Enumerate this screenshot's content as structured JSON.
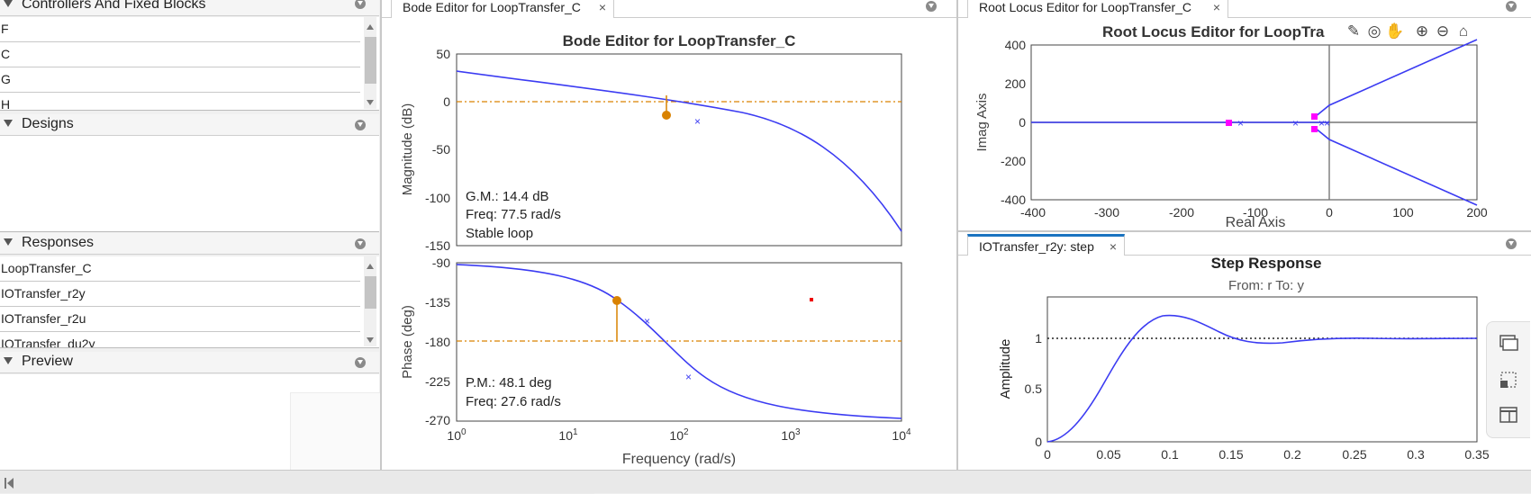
{
  "left_panel": {
    "controllers": {
      "title": "Controllers And Fixed Blocks",
      "items": [
        "F",
        "C",
        "G",
        "H"
      ]
    },
    "designs": {
      "title": "Designs"
    },
    "responses": {
      "title": "Responses",
      "items": [
        "LoopTransfer_C",
        "IOTransfer_r2y",
        "IOTransfer_r2u",
        "IOTransfer_du2y"
      ]
    },
    "preview": {
      "title": "Preview"
    }
  },
  "tabs": {
    "bode": "Bode Editor for LoopTransfer_C",
    "rlocus": "Root Locus Editor for LoopTransfer_C",
    "step": "IOTransfer_r2y: step",
    "close_glyph": "×"
  },
  "bode": {
    "title": "Bode Editor for LoopTransfer_C",
    "mag_ylabel": "Magnitude (dB)",
    "phase_ylabel": "Phase (deg)",
    "xlabel": "Frequency (rad/s)",
    "mag_ticks": [
      "50",
      "0",
      "-50",
      "-100",
      "-150"
    ],
    "phase_ticks": [
      "-90",
      "-135",
      "-180",
      "-225",
      "-270"
    ],
    "gm_text": [
      "G.M.: 14.4 dB",
      "Freq: 77.5 rad/s",
      "Stable loop"
    ],
    "pm_text": [
      "P.M.: 48.1 deg",
      "Freq: 27.6 rad/s"
    ]
  },
  "rlocus": {
    "title": "Root Locus Editor for LoopTra",
    "xlabel": "Real Axis",
    "ylabel": "Imag Axis",
    "xticks": [
      "-400",
      "-300",
      "-200",
      "-100",
      "0",
      "100",
      "200"
    ],
    "yticks": [
      "400",
      "200",
      "0",
      "-200",
      "-400"
    ],
    "tool_icons": [
      "edit-icon",
      "target-icon",
      "pan-hand-icon",
      "zoom-in-icon",
      "zoom-out-icon",
      "home-icon"
    ]
  },
  "step": {
    "title": "Step Response",
    "subtitle": "From: r  To: y",
    "ylabel": "Amplitude",
    "xticks": [
      "0",
      "0.05",
      "0.1",
      "0.15",
      "0.2",
      "0.25",
      "0.3",
      "0.35"
    ],
    "yticks": [
      "1",
      "0.5",
      "0"
    ]
  },
  "colors": {
    "line": "#3b3bf2",
    "accent": "#d98200",
    "marker": "#ff00ff",
    "tab_active": "#1a73c0"
  },
  "chart_data": [
    {
      "type": "line",
      "title": "Bode Editor for LoopTransfer_C",
      "xlabel": "Frequency (rad/s)",
      "ylabel": "Magnitude (dB)",
      "xscale": "log",
      "xlim": [
        1,
        10000
      ],
      "ylim": [
        -150,
        50
      ],
      "series": [
        {
          "x": [
            1,
            3,
            10,
            20,
            30,
            50,
            77.5,
            100,
            200,
            500,
            1000,
            3000,
            10000
          ],
          "values": [
            30.5,
            26,
            16.5,
            9,
            4,
            -4,
            -14.4,
            -20,
            -34,
            -57,
            -75,
            -103,
            -134
          ]
        }
      ],
      "annotations": {
        "gain_margin_db": 14.4,
        "gm_freq": 77.5
      }
    },
    {
      "type": "line",
      "xlabel": "Frequency (rad/s)",
      "ylabel": "Phase (deg)",
      "xscale": "log",
      "xlim": [
        1,
        10000
      ],
      "ylim": [
        -270,
        -90
      ],
      "series": [
        {
          "x": [
            1,
            3,
            10,
            20,
            27.6,
            50,
            77.5,
            150,
            300,
            1000,
            3000,
            10000
          ],
          "values": [
            -91,
            -94,
            -104,
            -121,
            -131.9,
            -153,
            -180,
            -207,
            -235,
            -258,
            -266,
            -269
          ]
        }
      ],
      "annotations": {
        "phase_margin_deg": 48.1,
        "pm_freq": 27.6
      }
    },
    {
      "type": "line",
      "title": "Root Locus Editor for LoopTransfer_C",
      "xlabel": "Real Axis",
      "ylabel": "Imag Axis",
      "xlim": [
        -400,
        200
      ],
      "ylim": [
        -400,
        400
      ],
      "series": [
        {
          "x": [
            -20,
            0,
            50,
            100,
            150,
            200
          ],
          "values": [
            55,
            120,
            200,
            280,
            360,
            430
          ]
        },
        {
          "x": [
            -20,
            0,
            50,
            100,
            150,
            200
          ],
          "values": [
            -55,
            -120,
            -200,
            -280,
            -360,
            -430
          ]
        }
      ],
      "poles": [
        -123,
        -50
      ],
      "closed_loop_poles": [
        -138,
        -18
      ]
    },
    {
      "type": "line",
      "title": "Step Response",
      "subtitle": "From: r  To: y",
      "ylabel": "Amplitude",
      "xlim": [
        0,
        0.35
      ],
      "ylim": [
        0,
        1.4
      ],
      "series": [
        {
          "x": [
            0,
            0.01,
            0.02,
            0.03,
            0.04,
            0.05,
            0.06,
            0.07,
            0.08,
            0.09,
            0.1,
            0.11,
            0.12,
            0.14,
            0.16,
            0.18,
            0.2,
            0.22,
            0.25,
            0.28,
            0.3,
            0.33,
            0.35
          ],
          "values": [
            0,
            0.02,
            0.1,
            0.28,
            0.5,
            0.72,
            0.92,
            1.07,
            1.16,
            1.2,
            1.21,
            1.19,
            1.15,
            1.07,
            1.0,
            0.97,
            0.97,
            0.98,
            1.0,
            1.01,
            1.01,
            1.0,
            1.0
          ]
        }
      ],
      "reference": 1
    }
  ]
}
